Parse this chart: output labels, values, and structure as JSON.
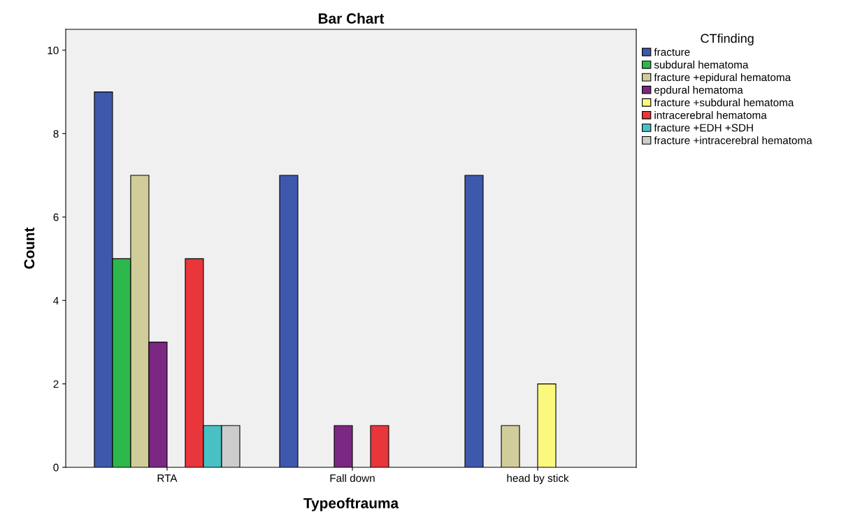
{
  "chart_data": {
    "type": "bar",
    "title": "Bar Chart",
    "xlabel": "Typeoftrauma",
    "ylabel": "Count",
    "legend_title": "CTfinding",
    "categories": [
      "RTA",
      "Fall down",
      "head by stick"
    ],
    "series": [
      {
        "name": "fracture",
        "color": "#3e58ac",
        "values": [
          9,
          7,
          7
        ]
      },
      {
        "name": "subdural hematoma",
        "color": "#2db84c",
        "values": [
          5,
          null,
          null
        ]
      },
      {
        "name": "fracture +epidural hematoma",
        "color": "#d1cd9a",
        "values": [
          7,
          null,
          1
        ]
      },
      {
        "name": "epdural hematoma",
        "color": "#7a2882",
        "values": [
          3,
          1,
          null
        ]
      },
      {
        "name": "fracture +subdural hematoma",
        "color": "#fbf87e",
        "values": [
          null,
          null,
          2
        ]
      },
      {
        "name": "intracerebral hematoma",
        "color": "#e9363a",
        "values": [
          5,
          1,
          null
        ]
      },
      {
        "name": "fracture +EDH +SDH",
        "color": "#48c1c4",
        "values": [
          1,
          null,
          null
        ]
      },
      {
        "name": "fracture +intracerebral hematoma",
        "color": "#cccccc",
        "values": [
          1,
          null,
          null
        ]
      }
    ],
    "ylim": [
      0,
      10.5
    ],
    "yticks": [
      0,
      2,
      4,
      6,
      8,
      10
    ],
    "grid": false,
    "legend": "right"
  }
}
